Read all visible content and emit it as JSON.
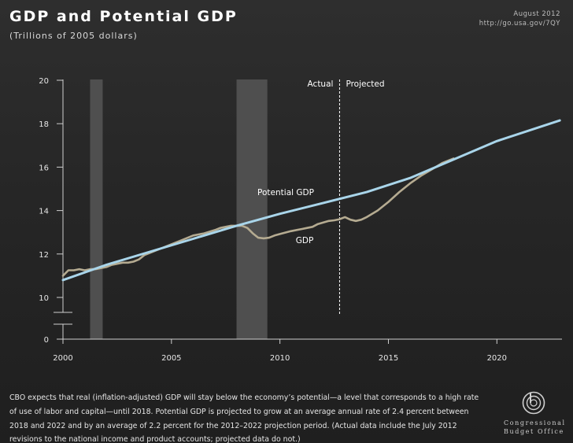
{
  "header": {
    "title": "GDP and Potential GDP",
    "subtitle": "(Trillions of 2005 dollars)",
    "date": "August 2012",
    "url": "http://go.usa.gov/7QY"
  },
  "caption": "CBO expects that real (inflation-adjusted) GDP will stay below the economy’s potential—a level that corresponds to a high rate of use of labor and capital—until 2018. Potential GDP is projected to grow at an average annual rate of 2.4 percent between 2018 and 2022 and by an average of 2.2 percent for the 2012–2022 projection period. (Actual data include the July 2012 revisions to the national income and product accounts; projected data do not.)",
  "logo": {
    "line1": "Congressional",
    "line2": "Budget Office"
  },
  "colors": {
    "gdp": "#b5ab91",
    "potential": "#a9d5ea",
    "recession": "#4f4f4f",
    "background": "#262626",
    "text": "#ffffff"
  },
  "chart_data": {
    "type": "line",
    "xlim": [
      2000,
      2023
    ],
    "ylim": [
      9,
      20
    ],
    "y_axis_break": true,
    "yticks": [
      0,
      10,
      12,
      14,
      16,
      18,
      20
    ],
    "xticks": [
      2000,
      2005,
      2010,
      2015,
      2020
    ],
    "projection_start": 2012.75,
    "annotations": {
      "actual": "Actual",
      "projected": "Projected"
    },
    "recessions": [
      [
        2001.25,
        2001.83
      ],
      [
        2008.0,
        2009.42
      ]
    ],
    "series": [
      {
        "name": "Potential GDP",
        "x": [
          2000,
          2002,
          2004,
          2006,
          2008,
          2010,
          2012,
          2014,
          2016,
          2018,
          2020,
          2022.9
        ],
        "values": [
          10.8,
          11.5,
          12.1,
          12.7,
          13.3,
          13.85,
          14.35,
          14.85,
          15.5,
          16.35,
          17.2,
          18.15
        ]
      },
      {
        "name": "GDP",
        "x": [
          2000,
          2000.25,
          2000.5,
          2000.75,
          2001,
          2001.25,
          2001.5,
          2001.75,
          2002,
          2002.25,
          2002.5,
          2002.75,
          2003,
          2003.25,
          2003.5,
          2003.75,
          2004,
          2004.5,
          2005,
          2005.5,
          2006,
          2006.5,
          2007,
          2007.25,
          2007.5,
          2007.75,
          2008,
          2008.25,
          2008.5,
          2008.75,
          2009,
          2009.25,
          2009.5,
          2009.75,
          2010,
          2010.5,
          2011,
          2011.25,
          2011.5,
          2011.75,
          2012,
          2012.25,
          2012.5,
          2012.75,
          2013,
          2013.25,
          2013.5,
          2013.75,
          2014,
          2014.5,
          2015,
          2015.5,
          2016,
          2016.5,
          2017,
          2017.5,
          2018
        ],
        "values": [
          11.0,
          11.25,
          11.25,
          11.3,
          11.25,
          11.3,
          11.3,
          11.35,
          11.4,
          11.5,
          11.55,
          11.6,
          11.6,
          11.65,
          11.75,
          11.95,
          12.05,
          12.25,
          12.45,
          12.65,
          12.85,
          12.95,
          13.1,
          13.2,
          13.25,
          13.3,
          13.3,
          13.3,
          13.2,
          12.95,
          12.75,
          12.72,
          12.75,
          12.85,
          12.92,
          13.05,
          13.15,
          13.2,
          13.25,
          13.38,
          13.45,
          13.52,
          13.55,
          13.6,
          13.7,
          13.58,
          13.52,
          13.58,
          13.7,
          14.0,
          14.4,
          14.85,
          15.25,
          15.6,
          15.9,
          16.2,
          16.4
        ]
      }
    ]
  }
}
